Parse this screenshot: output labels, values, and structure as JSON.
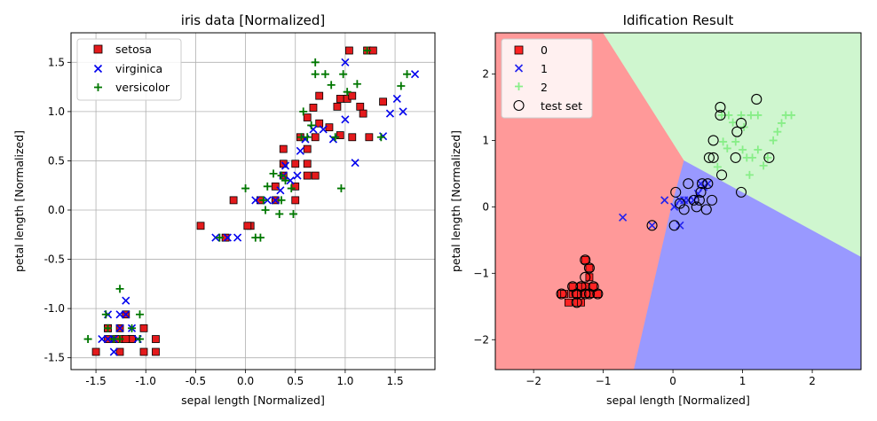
{
  "chart_data": [
    {
      "type": "scatter",
      "title": "iris data [Normalized]",
      "xlabel": "sepal length [Normalized]",
      "ylabel": "petal length [Normalized]",
      "xlim": [
        -1.75,
        1.9
      ],
      "ylim": [
        -1.62,
        1.8
      ],
      "xticks": [
        "-1.5",
        "-1.0",
        "-0.5",
        "0.0",
        "0.5",
        "1.0",
        "1.5"
      ],
      "yticks": [
        "-1.5",
        "-1.0",
        "-0.5",
        "0.0",
        "0.5",
        "1.0",
        "1.5"
      ],
      "grid": true,
      "legend_position": "upper-left",
      "series": [
        {
          "name": "setosa",
          "marker": "square",
          "color": "#e41a1c",
          "points": [
            [
              -0.9,
              -1.44
            ],
            [
              -1.02,
              -1.44
            ],
            [
              -1.14,
              -1.31
            ],
            [
              -1.26,
              -1.31
            ],
            [
              -1.38,
              -1.2
            ],
            [
              -1.5,
              -1.44
            ],
            [
              -1.26,
              -1.2
            ],
            [
              -1.38,
              -1.31
            ],
            [
              -1.14,
              -1.31
            ],
            [
              -1.02,
              -1.2
            ],
            [
              -0.9,
              -1.31
            ],
            [
              -1.26,
              -1.44
            ],
            [
              -1.38,
              -1.2
            ],
            [
              -1.2,
              -1.06
            ],
            [
              -1.3,
              -1.31
            ],
            [
              -1.2,
              -1.31
            ],
            [
              1.22,
              1.62
            ],
            [
              1.04,
              1.62
            ],
            [
              1.28,
              1.62
            ],
            [
              0.68,
              1.04
            ],
            [
              0.74,
              1.16
            ],
            [
              0.92,
              1.05
            ],
            [
              0.95,
              1.13
            ],
            [
              1.02,
              1.13
            ],
            [
              1.07,
              1.16
            ],
            [
              1.15,
              1.05
            ],
            [
              1.38,
              1.1
            ],
            [
              1.18,
              0.98
            ],
            [
              0.84,
              0.84
            ],
            [
              0.95,
              0.76
            ],
            [
              1.07,
              0.74
            ],
            [
              1.24,
              0.74
            ],
            [
              0.62,
              0.94
            ],
            [
              0.7,
              0.74
            ],
            [
              0.55,
              0.74
            ],
            [
              0.38,
              0.62
            ],
            [
              0.38,
              0.47
            ],
            [
              0.5,
              0.47
            ],
            [
              0.62,
              0.47
            ],
            [
              0.38,
              0.35
            ],
            [
              0.62,
              0.35
            ],
            [
              0.7,
              0.35
            ],
            [
              0.3,
              0.24
            ],
            [
              0.5,
              0.24
            ],
            [
              0.05,
              -0.16
            ],
            [
              0.02,
              -0.16
            ],
            [
              -0.2,
              -0.28
            ],
            [
              -0.45,
              -0.16
            ],
            [
              -0.12,
              0.1
            ],
            [
              0.15,
              0.1
            ],
            [
              0.3,
              0.1
            ],
            [
              0.5,
              0.1
            ],
            [
              0.62,
              0.62
            ],
            [
              0.74,
              0.88
            ]
          ]
        },
        {
          "name": "virginica",
          "marker": "x",
          "color": "#0000ee",
          "points": [
            [
              -1.44,
              -1.31
            ],
            [
              -1.38,
              -1.31
            ],
            [
              -1.32,
              -1.31
            ],
            [
              -1.26,
              -1.2
            ],
            [
              -1.2,
              -1.06
            ],
            [
              -1.26,
              -1.06
            ],
            [
              -1.38,
              -1.06
            ],
            [
              -1.2,
              -0.92
            ],
            [
              -1.32,
              -1.44
            ],
            [
              -1.14,
              -1.2
            ],
            [
              -1.08,
              -1.31
            ],
            [
              -0.3,
              -0.28
            ],
            [
              -0.18,
              -0.28
            ],
            [
              -0.08,
              -0.28
            ],
            [
              0.1,
              0.1
            ],
            [
              0.22,
              0.1
            ],
            [
              0.3,
              0.1
            ],
            [
              0.35,
              0.2
            ],
            [
              0.38,
              0.35
            ],
            [
              0.45,
              0.3
            ],
            [
              0.52,
              0.35
            ],
            [
              0.6,
              0.72
            ],
            [
              0.68,
              0.82
            ],
            [
              0.78,
              0.82
            ],
            [
              0.88,
              0.72
            ],
            [
              1.0,
              0.92
            ],
            [
              1.1,
              0.48
            ],
            [
              1.38,
              0.75
            ],
            [
              1.45,
              0.98
            ],
            [
              1.58,
              1.0
            ],
            [
              1.52,
              1.13
            ],
            [
              1.7,
              1.38
            ],
            [
              1.0,
              1.5
            ],
            [
              0.55,
              0.6
            ],
            [
              0.4,
              0.45
            ]
          ]
        },
        {
          "name": "versicolor",
          "marker": "plus",
          "color": "#007700",
          "points": [
            [
              -1.58,
              -1.31
            ],
            [
              -1.4,
              -1.06
            ],
            [
              -1.26,
              -0.8
            ],
            [
              -1.14,
              -1.2
            ],
            [
              -1.06,
              -1.06
            ],
            [
              -1.06,
              -1.31
            ],
            [
              -1.32,
              -1.31
            ],
            [
              -1.38,
              -1.2
            ],
            [
              -1.26,
              -1.31
            ],
            [
              -0.26,
              -0.28
            ],
            [
              0.1,
              -0.28
            ],
            [
              0.15,
              -0.28
            ],
            [
              0.0,
              0.22
            ],
            [
              0.18,
              0.1
            ],
            [
              0.22,
              0.24
            ],
            [
              0.36,
              0.1
            ],
            [
              0.46,
              0.22
            ],
            [
              0.48,
              -0.04
            ],
            [
              0.34,
              -0.04
            ],
            [
              0.2,
              0.0
            ],
            [
              0.4,
              0.3
            ],
            [
              0.56,
              0.74
            ],
            [
              0.62,
              0.74
            ],
            [
              0.66,
              0.86
            ],
            [
              0.7,
              1.5
            ],
            [
              0.7,
              1.38
            ],
            [
              0.8,
              1.38
            ],
            [
              0.86,
              1.27
            ],
            [
              0.98,
              1.38
            ],
            [
              1.02,
              1.2
            ],
            [
              1.12,
              1.28
            ],
            [
              1.22,
              1.62
            ],
            [
              1.36,
              0.74
            ],
            [
              1.56,
              1.26
            ],
            [
              1.62,
              1.38
            ],
            [
              0.96,
              0.22
            ],
            [
              0.58,
              1.0
            ],
            [
              0.9,
              0.74
            ],
            [
              0.36,
              0.35
            ],
            [
              0.28,
              0.37
            ]
          ]
        }
      ]
    },
    {
      "type": "scatter",
      "title": "Idification Result",
      "xlabel": "sepal length [Normalized]",
      "ylabel": "petal length [Normalized]",
      "xlim": [
        -2.55,
        2.7
      ],
      "ylim": [
        -2.45,
        2.62
      ],
      "xticks": [
        "−2",
        "−1",
        "0",
        "1",
        "2"
      ],
      "yticks": [
        "−2",
        "−1",
        "0",
        "1",
        "2"
      ],
      "grid": false,
      "legend_position": "upper-left",
      "regions": [
        {
          "class": "0",
          "color": "#ff9999",
          "vertices": [
            [
              -2.55,
              2.62
            ],
            [
              -1.0,
              2.62
            ],
            [
              0.16,
              0.7
            ],
            [
              -0.02,
              0.0
            ],
            [
              -0.56,
              -2.45
            ],
            [
              -2.55,
              -2.45
            ]
          ]
        },
        {
          "class": "1",
          "color": "#9999ff",
          "vertices": [
            [
              0.16,
              0.7
            ],
            [
              2.7,
              -0.75
            ],
            [
              2.7,
              -2.45
            ],
            [
              -0.56,
              -2.45
            ],
            [
              -0.02,
              0.0
            ]
          ]
        },
        {
          "class": "2",
          "color": "#cff6cf",
          "vertices": [
            [
              -1.0,
              2.62
            ],
            [
              2.7,
              2.62
            ],
            [
              2.7,
              -0.75
            ],
            [
              0.16,
              0.7
            ]
          ]
        }
      ],
      "series": [
        {
          "name": "0",
          "marker": "square",
          "color": "#ff2222",
          "points": [
            [
              -1.6,
              -1.31
            ],
            [
              -1.56,
              -1.31
            ],
            [
              -1.5,
              -1.44
            ],
            [
              -1.44,
              -1.2
            ],
            [
              -1.44,
              -1.31
            ],
            [
              -1.38,
              -1.31
            ],
            [
              -1.38,
              -1.44
            ],
            [
              -1.32,
              -1.2
            ],
            [
              -1.32,
              -1.31
            ],
            [
              -1.32,
              -1.44
            ],
            [
              -1.26,
              -1.2
            ],
            [
              -1.26,
              -1.31
            ],
            [
              -1.2,
              -1.06
            ],
            [
              -1.2,
              -1.31
            ],
            [
              -1.14,
              -1.2
            ],
            [
              -1.14,
              -1.31
            ],
            [
              -1.08,
              -1.31
            ],
            [
              -1.26,
              -0.8
            ],
            [
              -1.2,
              -0.92
            ]
          ]
        },
        {
          "name": "1",
          "marker": "x",
          "color": "#2222ee",
          "points": [
            [
              -0.72,
              -0.16
            ],
            [
              -0.3,
              -0.28
            ],
            [
              -0.12,
              0.1
            ],
            [
              0.02,
              0.0
            ],
            [
              0.1,
              -0.28
            ],
            [
              0.16,
              0.1
            ],
            [
              0.22,
              0.1
            ],
            [
              0.3,
              0.1
            ],
            [
              0.36,
              0.2
            ],
            [
              0.4,
              0.35
            ],
            [
              0.5,
              0.35
            ],
            [
              0.44,
              0.3
            ],
            [
              0.1,
              0.1
            ]
          ]
        },
        {
          "name": "2",
          "marker": "plus",
          "color": "#88ee88",
          "points": [
            [
              0.7,
              1.38
            ],
            [
              0.8,
              1.38
            ],
            [
              0.86,
              1.27
            ],
            [
              0.98,
              1.38
            ],
            [
              1.02,
              1.2
            ],
            [
              1.12,
              1.38
            ],
            [
              1.22,
              1.38
            ],
            [
              1.36,
              0.74
            ],
            [
              1.56,
              1.26
            ],
            [
              1.62,
              1.38
            ],
            [
              1.7,
              1.38
            ],
            [
              0.72,
              0.98
            ],
            [
              0.78,
              0.88
            ],
            [
              0.9,
              0.98
            ],
            [
              1.0,
              0.86
            ],
            [
              1.06,
              0.74
            ],
            [
              1.14,
              0.74
            ],
            [
              1.22,
              0.86
            ],
            [
              1.3,
              0.62
            ],
            [
              1.44,
              1.0
            ],
            [
              1.5,
              1.13
            ],
            [
              1.1,
              0.48
            ],
            [
              0.64,
              0.6
            ]
          ]
        },
        {
          "name": "test set",
          "marker": "circle-open",
          "color": "#000000",
          "points": [
            [
              -1.6,
              -1.31
            ],
            [
              -1.44,
              -1.2
            ],
            [
              -1.38,
              -1.44
            ],
            [
              -1.32,
              -1.2
            ],
            [
              -1.26,
              -1.06
            ],
            [
              -1.2,
              -1.31
            ],
            [
              -1.14,
              -1.2
            ],
            [
              -1.08,
              -1.31
            ],
            [
              -1.26,
              -0.8
            ],
            [
              -1.2,
              -0.92
            ],
            [
              -1.38,
              -1.31
            ],
            [
              -1.26,
              -1.31
            ],
            [
              -0.3,
              -0.28
            ],
            [
              0.04,
              0.22
            ],
            [
              0.1,
              0.05
            ],
            [
              0.16,
              -0.04
            ],
            [
              0.02,
              -0.28
            ],
            [
              0.22,
              0.35
            ],
            [
              0.3,
              0.1
            ],
            [
              0.34,
              0.0
            ],
            [
              0.4,
              0.22
            ],
            [
              0.5,
              0.35
            ],
            [
              0.56,
              0.1
            ],
            [
              0.48,
              -0.04
            ],
            [
              0.42,
              0.35
            ],
            [
              0.38,
              0.1
            ],
            [
              0.52,
              0.74
            ],
            [
              0.58,
              0.74
            ],
            [
              0.58,
              1.0
            ],
            [
              0.7,
              0.48
            ],
            [
              0.68,
              1.38
            ],
            [
              0.68,
              1.5
            ],
            [
              0.9,
              0.74
            ],
            [
              0.92,
              1.13
            ],
            [
              0.98,
              1.26
            ],
            [
              1.2,
              1.62
            ],
            [
              1.38,
              0.74
            ],
            [
              0.98,
              0.22
            ]
          ]
        }
      ]
    }
  ]
}
